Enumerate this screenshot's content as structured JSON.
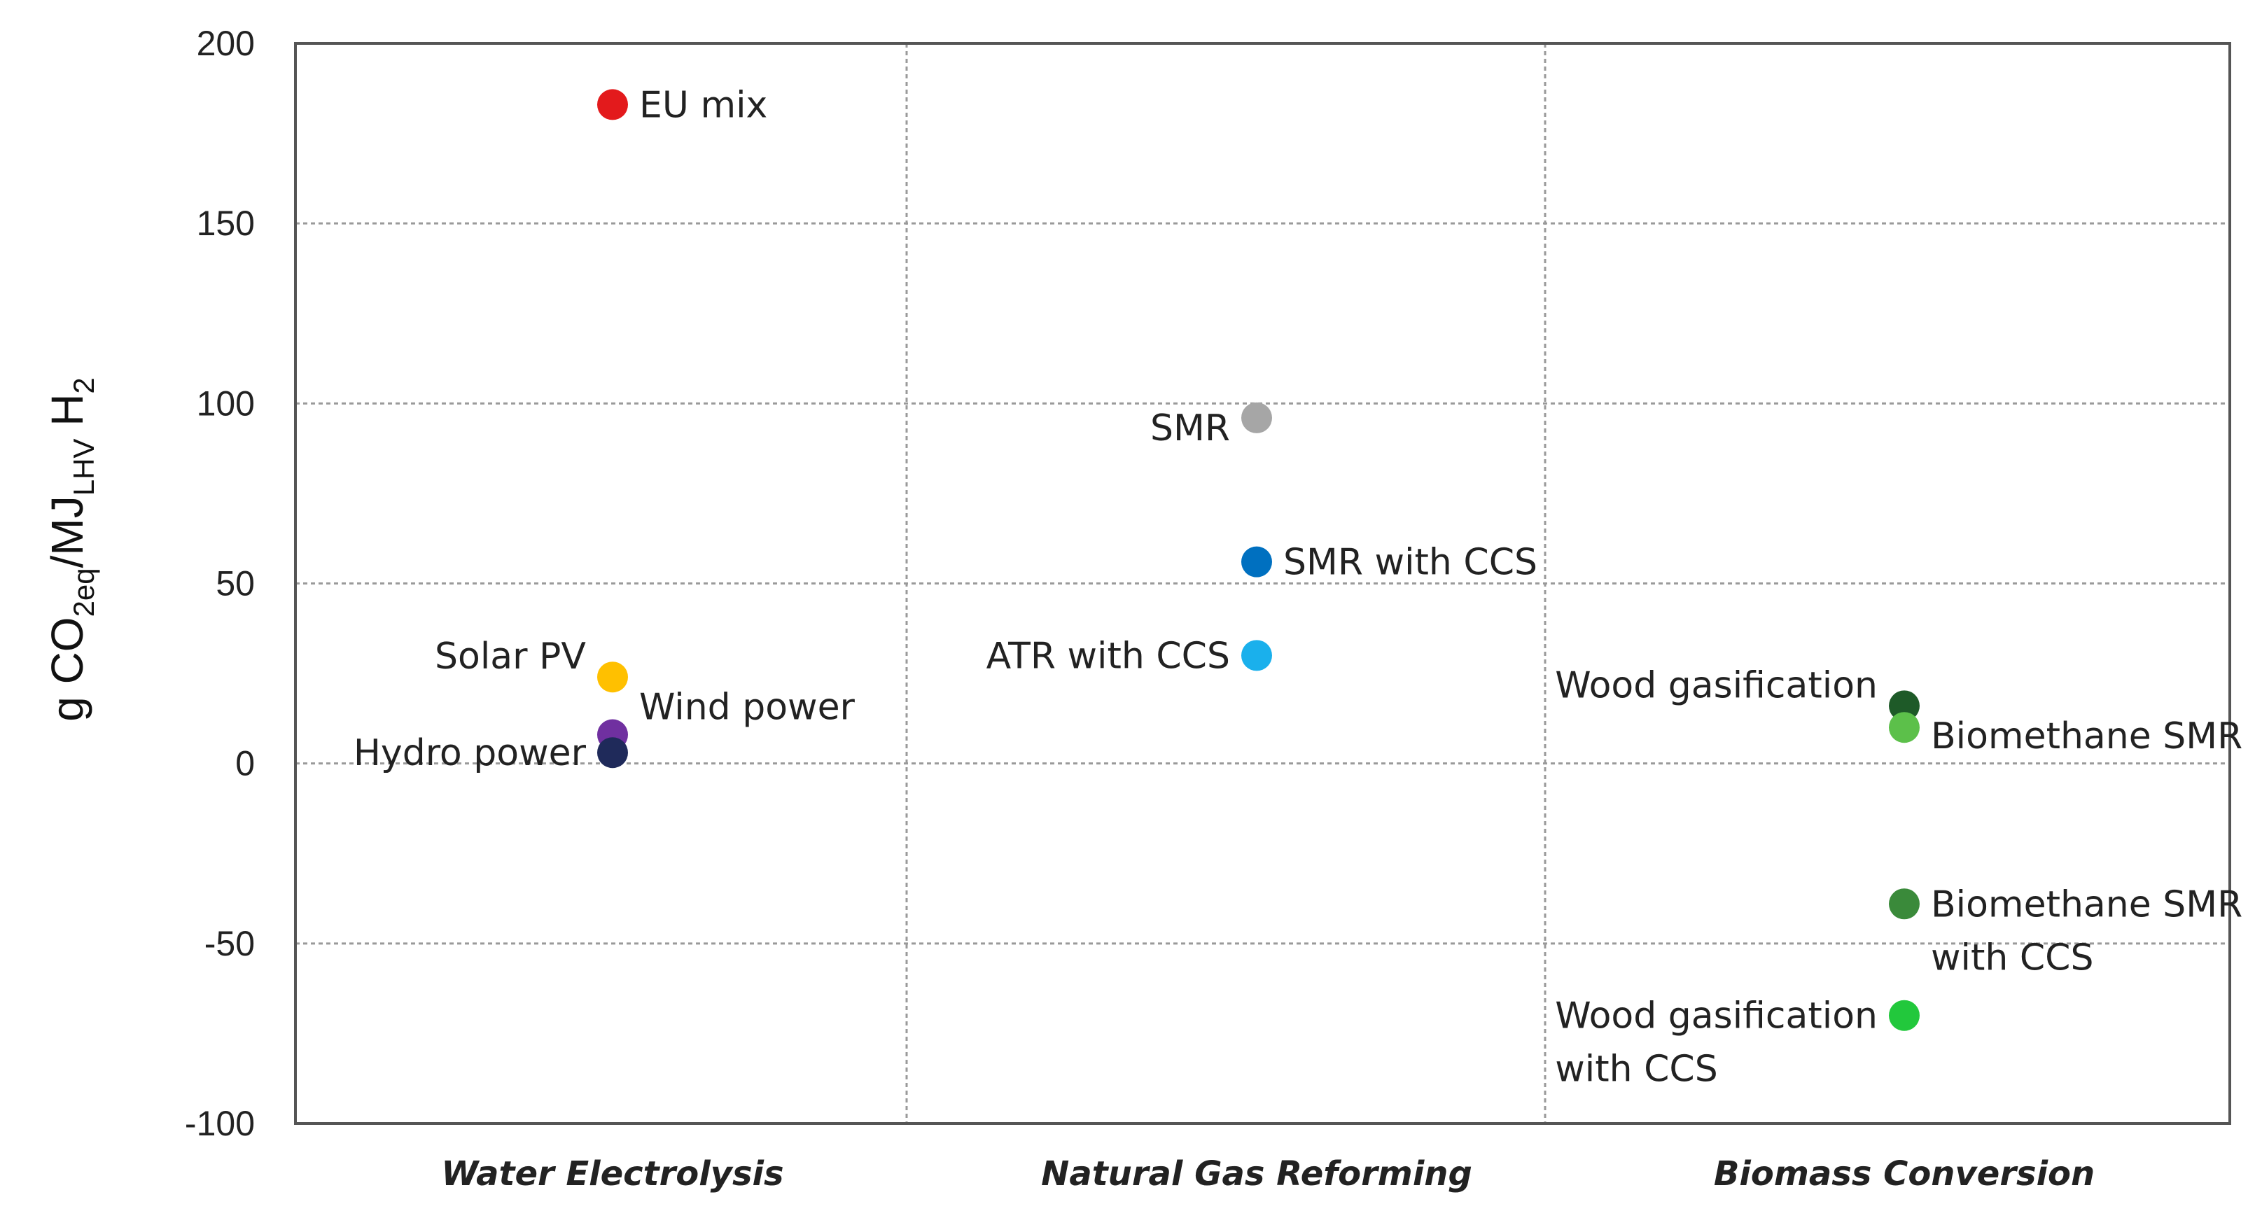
{
  "chart_data": {
    "type": "scatter",
    "title": "",
    "xlabel": "",
    "ylabel": {
      "prefix": "g CO",
      "sub1": "2eq",
      "middle": "/MJ",
      "sub2": "LHV",
      "suffix": " H",
      "sub3": "2"
    },
    "ylim": [
      -100,
      200
    ],
    "yticks": [
      200,
      150,
      100,
      50,
      0,
      -50,
      -100
    ],
    "ytick_labels": [
      "200",
      "150",
      "100",
      "50",
      "0",
      "-50",
      "-100"
    ],
    "grid": true,
    "categories": [
      "Water Electrolysis",
      "Natural Gas Reforming",
      "Biomass Conversion"
    ],
    "points": [
      {
        "label": [
          "EU mix"
        ],
        "category": 0,
        "y": 183,
        "color": "#e31a1c",
        "label_side": "right"
      },
      {
        "label": [
          "Solar PV"
        ],
        "category": 0,
        "y": 24,
        "color": "#ffc000",
        "label_side": "left-above"
      },
      {
        "label": [
          "Wind power"
        ],
        "category": 0,
        "y": 8,
        "color": "#7030a0",
        "label_side": "right-above"
      },
      {
        "label": [
          "Hydro power"
        ],
        "category": 0,
        "y": 3,
        "color": "#1f2a5a",
        "label_side": "left"
      },
      {
        "label": [
          "SMR"
        ],
        "category": 1,
        "y": 96,
        "color": "#a6a6a6",
        "label_side": "left-below"
      },
      {
        "label": [
          "SMR with CCS"
        ],
        "category": 1,
        "y": 56,
        "color": "#0070c0",
        "label_side": "right"
      },
      {
        "label": [
          "ATR with CCS"
        ],
        "category": 1,
        "y": 30,
        "color": "#1ab0ec",
        "label_side": "left"
      },
      {
        "label": [
          "Wood gasification"
        ],
        "category": 2,
        "y": 16,
        "color": "#1e5a28",
        "label_side": "left-above"
      },
      {
        "label": [
          "Biomethane SMR"
        ],
        "category": 2,
        "y": 10,
        "color": "#5cc04a",
        "label_side": "right-below"
      },
      {
        "label": [
          "Biomethane SMR",
          "with CCS"
        ],
        "category": 2,
        "y": -39,
        "color": "#3a8a3a",
        "label_side": "right"
      },
      {
        "label": [
          "Wood gasification",
          "with CCS"
        ],
        "category": 2,
        "y": -70,
        "color": "#22c83c",
        "label_side": "left"
      }
    ]
  }
}
